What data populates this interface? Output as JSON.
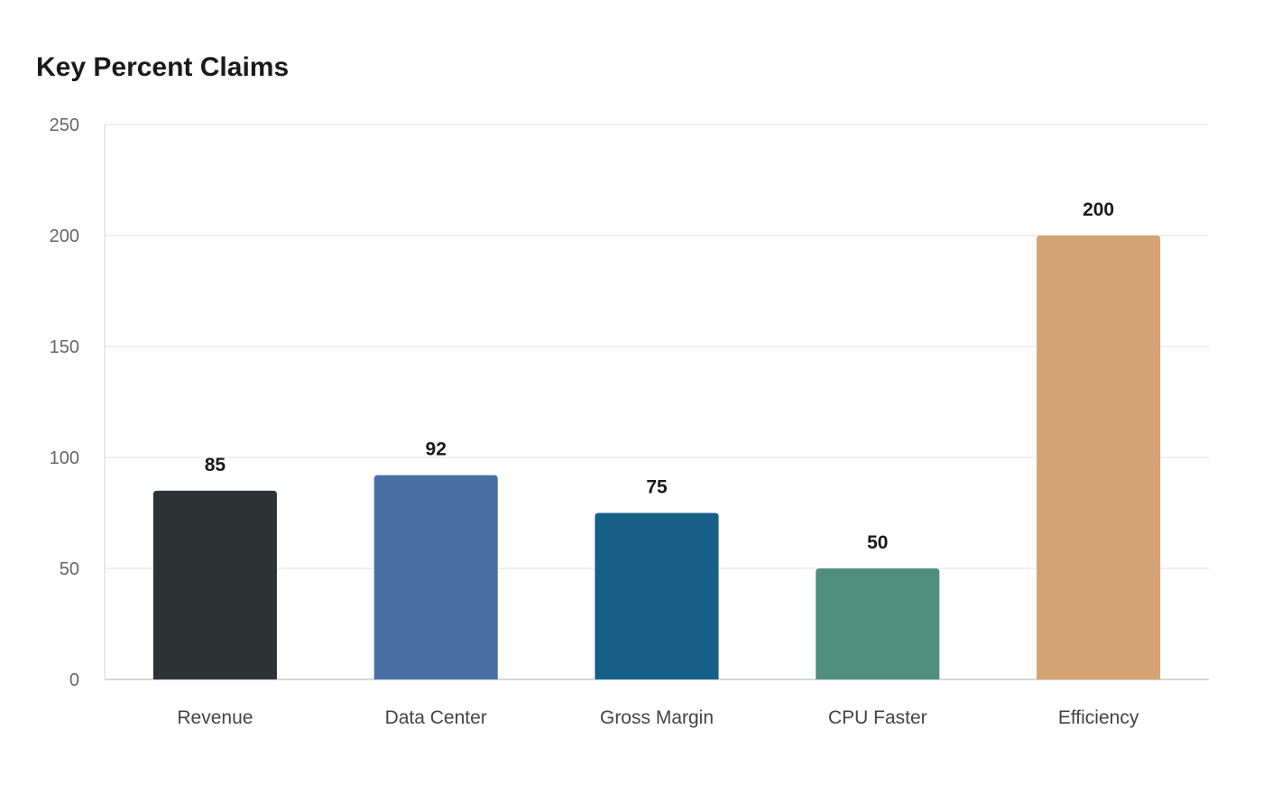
{
  "chart_data": {
    "type": "bar",
    "title": "Key Percent Claims",
    "xlabel": "",
    "ylabel": "",
    "categories": [
      "Revenue",
      "Data Center",
      "Gross Margin",
      "CPU Faster",
      "Efficiency"
    ],
    "values": [
      85,
      92,
      75,
      50,
      200
    ],
    "value_labels": [
      "85",
      "92",
      "75",
      "50",
      "200"
    ],
    "colors": [
      "#2d3436",
      "#4a6fa5",
      "#166088",
      "#4f8f7b",
      "#d4a373"
    ],
    "ylim": [
      0,
      250
    ],
    "yticks": [
      0,
      50,
      100,
      150,
      200,
      250
    ],
    "ytick_labels": [
      "0",
      "50",
      "100",
      "150",
      "200",
      "250"
    ],
    "grid": true,
    "legend": "none"
  }
}
